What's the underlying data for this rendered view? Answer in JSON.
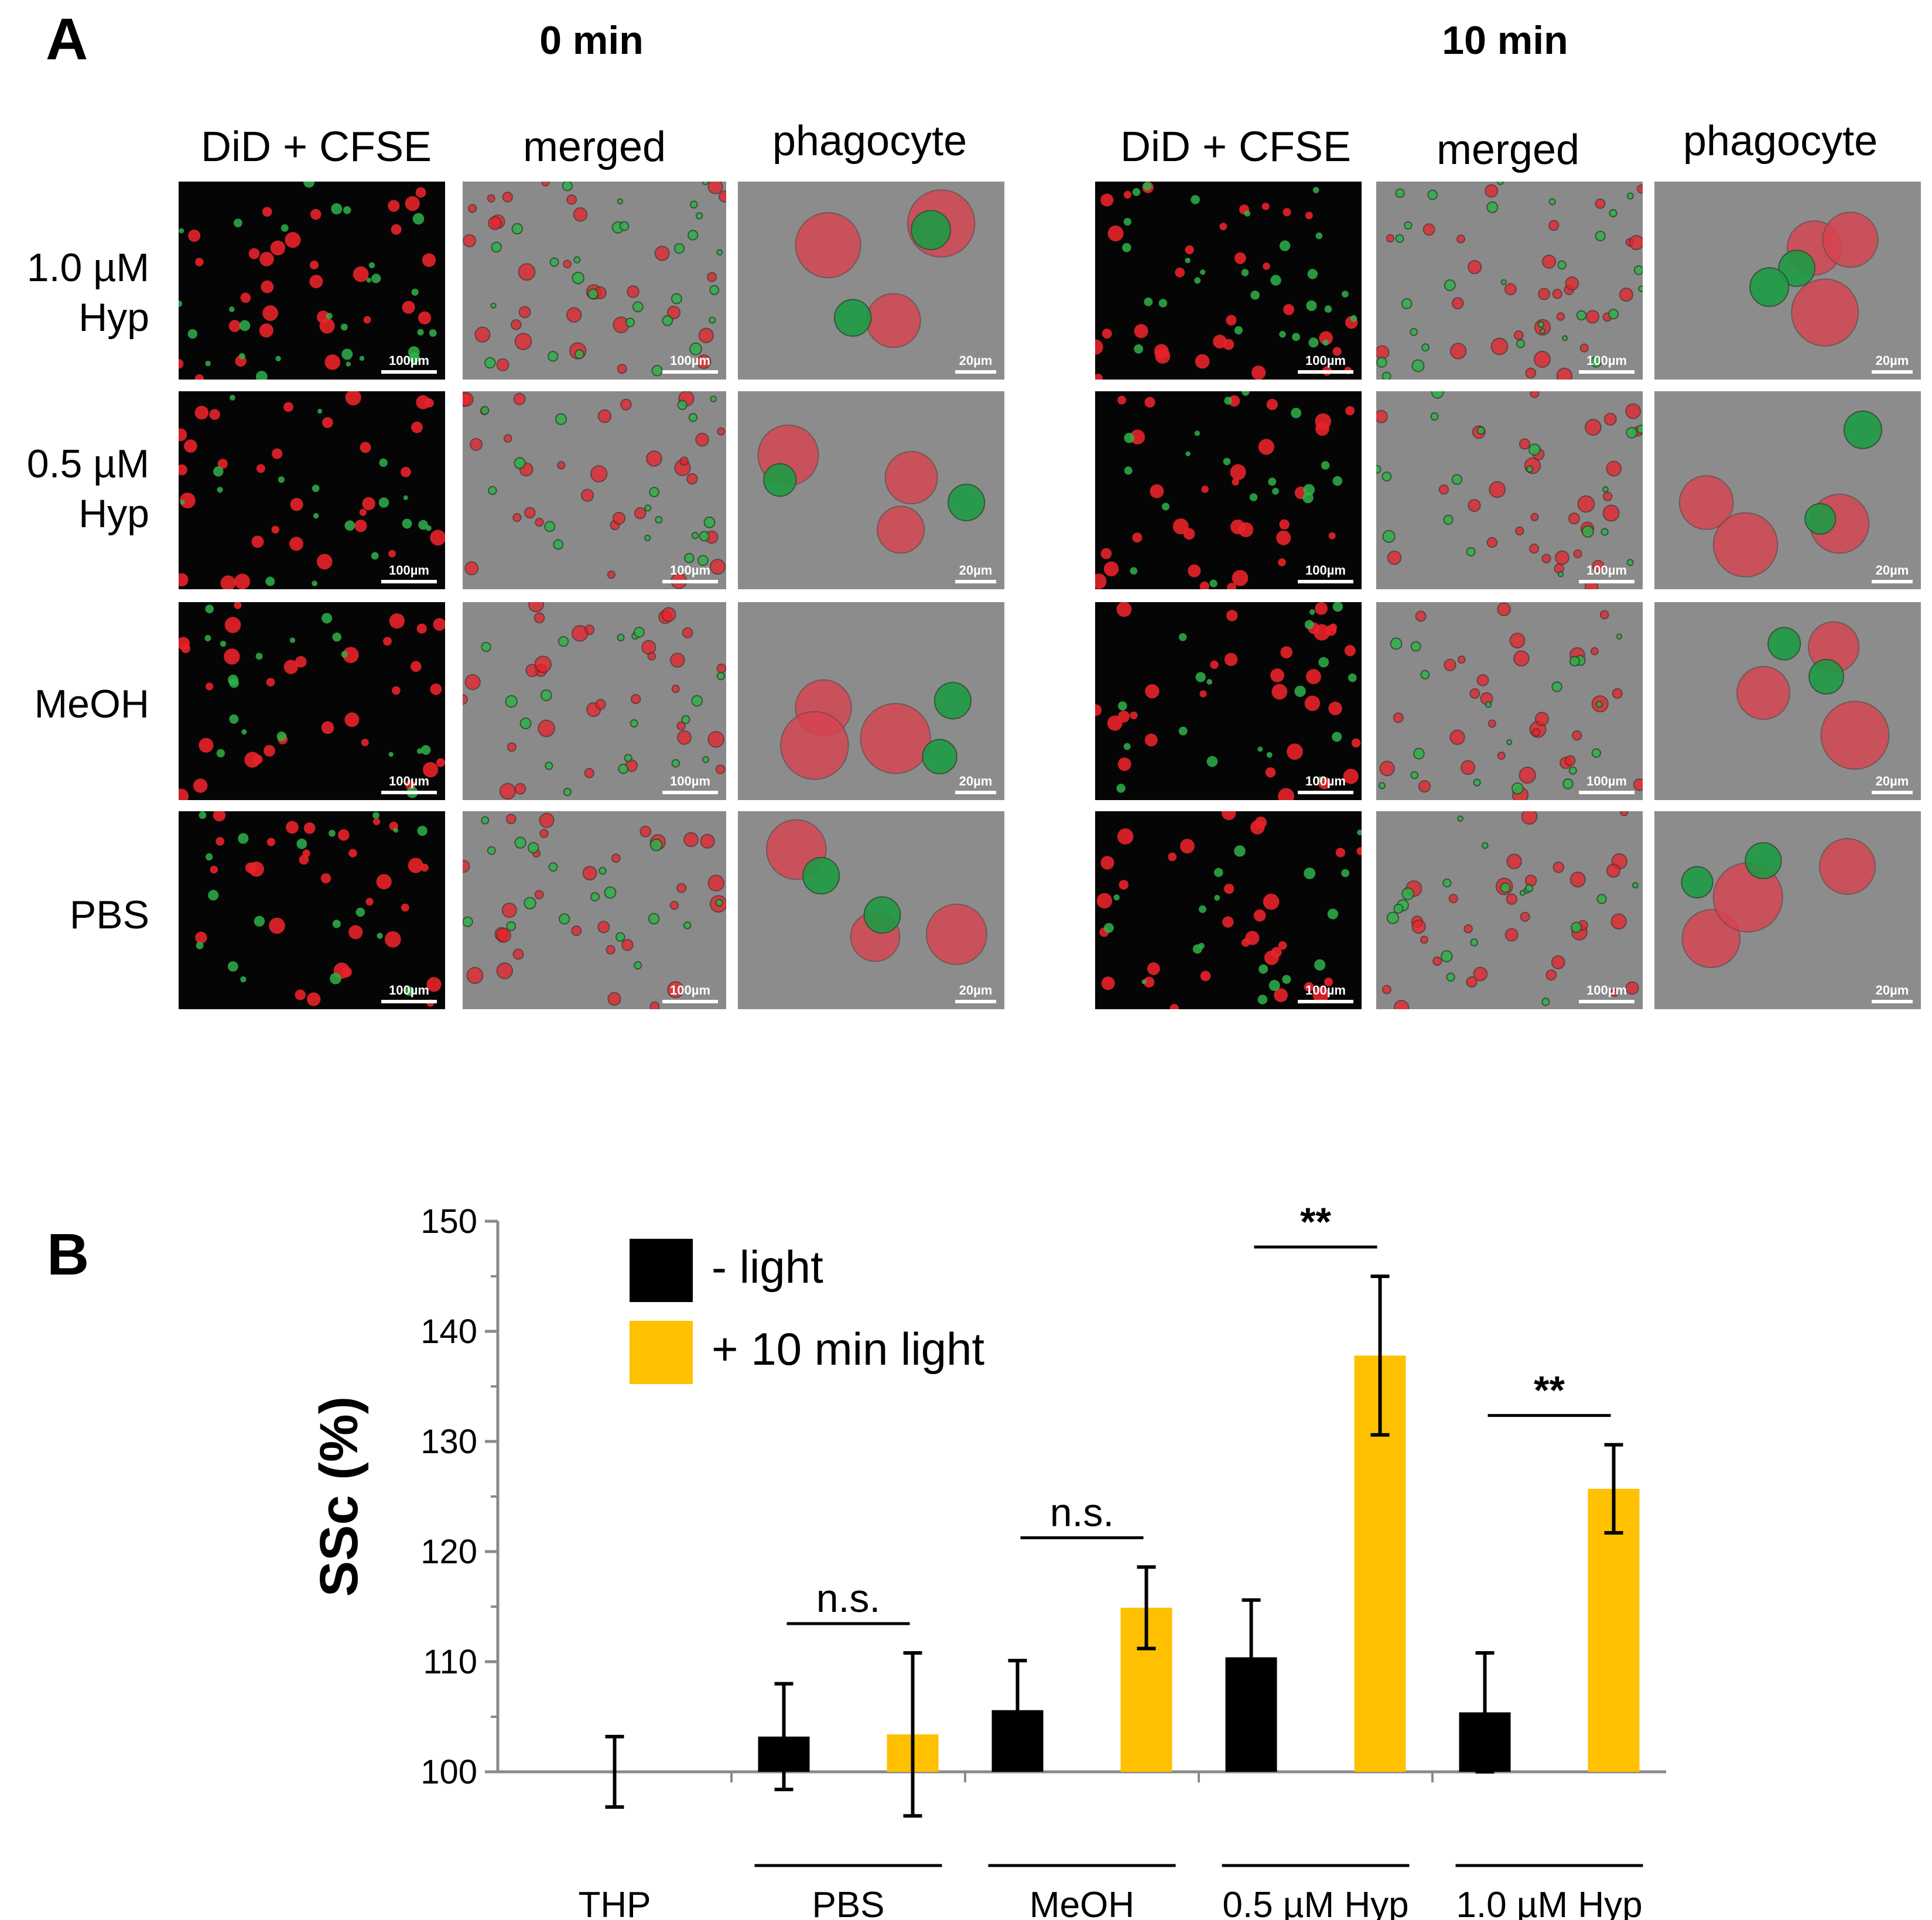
{
  "panel_a": {
    "letter": "A",
    "timepoints": [
      {
        "label": "0 min",
        "columns": [
          "DiD + CFSE",
          "merged",
          "phagocyte"
        ]
      },
      {
        "label": "10 min",
        "columns": [
          "DiD + CFSE",
          "merged",
          "phagocyte"
        ]
      }
    ],
    "rows": [
      {
        "line1": "1.0 µM",
        "line2": "Hyp"
      },
      {
        "line1": "0.5 µM",
        "line2": "Hyp"
      },
      {
        "line1": "MeOH",
        "line2": ""
      },
      {
        "line1": "PBS",
        "line2": ""
      }
    ],
    "scale_labels": {
      "overview": "100µm",
      "phagocyte": "20µm"
    }
  },
  "panel_b": {
    "letter": "B"
  },
  "chart_data": {
    "type": "bar",
    "ylabel": "SSc (%)",
    "ylim": [
      100,
      150
    ],
    "yticks": [
      100,
      110,
      120,
      130,
      140,
      150
    ],
    "grid": false,
    "legend_position": "top-left",
    "categories": [
      "THP",
      "PBS",
      "MeOH",
      "0.5 µM Hyp",
      "1.0 µM Hyp"
    ],
    "series": [
      {
        "name": "- light",
        "color": "#000000",
        "values": [
          100,
          103.2,
          105.6,
          110.4,
          105.4
        ],
        "errors": [
          3.2,
          4.8,
          4.5,
          5.2,
          5.4
        ]
      },
      {
        "name": "+ 10 min light",
        "color": "#FFC000",
        "values": [
          null,
          103.4,
          114.9,
          137.8,
          125.7
        ],
        "errors": [
          null,
          7.4,
          3.7,
          7.2,
          4.0
        ]
      }
    ],
    "annotations": [
      {
        "group": "PBS",
        "text": "n.s."
      },
      {
        "group": "MeOH",
        "text": "n.s."
      },
      {
        "group": "0.5 µM Hyp",
        "text": "**"
      },
      {
        "group": "1.0 µM Hyp",
        "text": "**"
      }
    ]
  }
}
